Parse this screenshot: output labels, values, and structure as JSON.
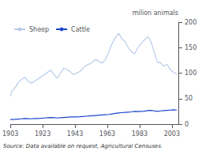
{
  "chart_data": {
    "type": "line",
    "ylabel": "milion animals",
    "annotations": [
      "Source: Data available on request, Agricultural Censuses."
    ],
    "x": [
      1903,
      1904,
      1906,
      1908,
      1910,
      1912,
      1914,
      1916,
      1918,
      1920,
      1922,
      1924,
      1926,
      1928,
      1930,
      1932,
      1934,
      1936,
      1938,
      1940,
      1942,
      1944,
      1946,
      1948,
      1950,
      1952,
      1954,
      1956,
      1958,
      1960,
      1962,
      1964,
      1966,
      1968,
      1970,
      1972,
      1974,
      1976,
      1978,
      1980,
      1982,
      1984,
      1986,
      1988,
      1990,
      1992,
      1994,
      1996,
      1998,
      2000,
      2002,
      2004,
      2006
    ],
    "series": [
      {
        "name": "Sheep",
        "color": "#b8cce8",
        "values": [
          55,
          65,
          72,
          82,
          88,
          92,
          84,
          80,
          84,
          88,
          93,
          97,
          102,
          106,
          97,
          90,
          100,
          110,
          107,
          103,
          97,
          100,
          103,
          110,
          115,
          118,
          122,
          127,
          122,
          120,
          128,
          142,
          158,
          170,
          178,
          168,
          162,
          150,
          142,
          138,
          150,
          158,
          165,
          172,
          162,
          142,
          122,
          120,
          114,
          117,
          107,
          102,
          98
        ]
      },
      {
        "name": "Cattle",
        "color": "#1a44cc",
        "values": [
          9,
          9.2,
          9.5,
          10,
          10.5,
          11,
          10.8,
          10.5,
          11,
          11.2,
          11.5,
          12,
          12.5,
          13,
          12.5,
          12,
          12.5,
          13,
          13.5,
          14,
          14,
          14.2,
          14.5,
          15,
          15.5,
          16,
          16.5,
          17,
          17.5,
          18,
          18.5,
          19,
          20,
          21,
          22,
          22.5,
          23,
          23.5,
          24,
          25,
          24.5,
          25,
          25.5,
          26.5,
          27,
          26,
          25,
          26,
          26.5,
          27,
          27.5,
          28,
          27.5
        ]
      }
    ],
    "xlim": [
      1903,
      2007
    ],
    "xticks": [
      1903,
      1923,
      1943,
      1963,
      1983,
      2003
    ],
    "ylim": [
      0,
      200
    ],
    "yticks": [
      0,
      50,
      100,
      150,
      200
    ],
    "grid": false,
    "legend": "upper left"
  }
}
